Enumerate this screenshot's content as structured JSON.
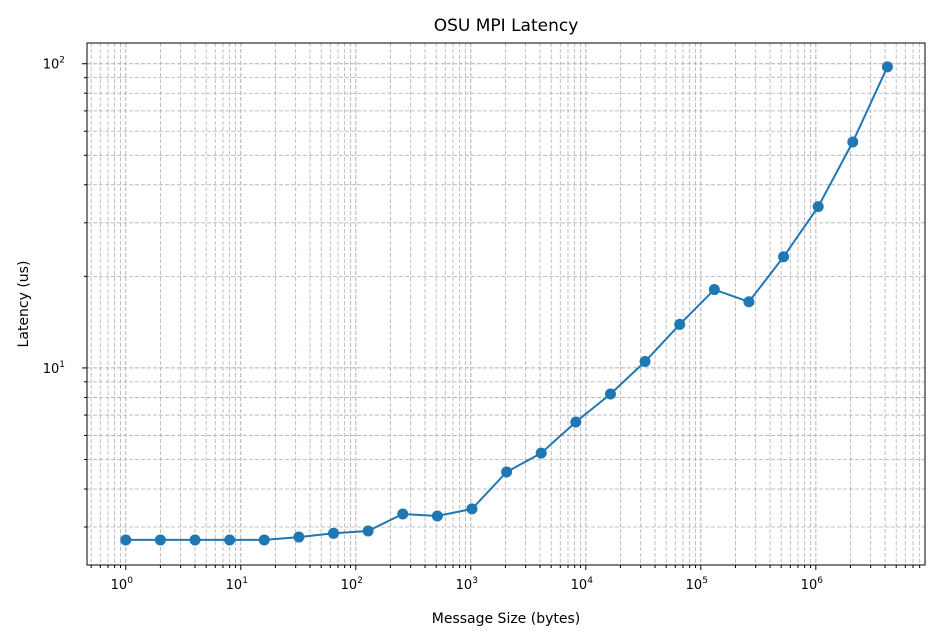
{
  "chart_data": {
    "type": "line",
    "title": "OSU MPI Latency",
    "xlabel": "Message Size (bytes)",
    "ylabel": "Latency (us)",
    "xscale": "log",
    "yscale": "log",
    "xlim": [
      0.46,
      8900000
    ],
    "ylim": [
      2.25,
      117
    ],
    "grid": true,
    "grid_style": "dashed, major and minor",
    "color": "#1f77b4",
    "marker": "circle",
    "x_ticks": [
      {
        "value": 1,
        "base": "10",
        "exp": "0"
      },
      {
        "value": 10,
        "base": "10",
        "exp": "1"
      },
      {
        "value": 100,
        "base": "10",
        "exp": "2"
      },
      {
        "value": 1000,
        "base": "10",
        "exp": "3"
      },
      {
        "value": 10000,
        "base": "10",
        "exp": "4"
      },
      {
        "value": 100000,
        "base": "10",
        "exp": "5"
      },
      {
        "value": 1000000,
        "base": "10",
        "exp": "6"
      }
    ],
    "y_ticks": [
      {
        "value": 10,
        "base": "10",
        "exp": "1"
      },
      {
        "value": 100,
        "base": "10",
        "exp": "2"
      }
    ],
    "x": [
      1,
      2,
      4,
      8,
      16,
      32,
      64,
      128,
      256,
      512,
      1024,
      2048,
      4096,
      8192,
      16384,
      32768,
      65536,
      131072,
      262144,
      524288,
      1048576,
      2097152,
      4194304
    ],
    "y": [
      2.72,
      2.72,
      2.72,
      2.72,
      2.72,
      2.78,
      2.86,
      2.91,
      3.31,
      3.26,
      3.44,
      4.55,
      5.25,
      6.64,
      8.21,
      10.5,
      13.9,
      18.1,
      16.5,
      23.2,
      33.9,
      55.3,
      97.7
    ]
  }
}
